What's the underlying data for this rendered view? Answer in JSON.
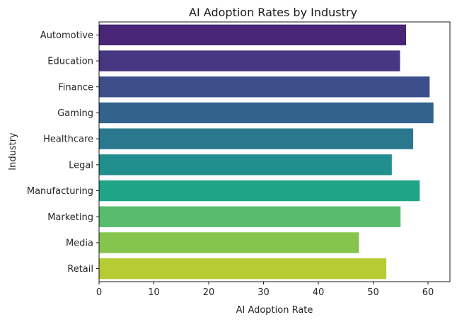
{
  "chart_data": {
    "type": "bar",
    "orientation": "horizontal",
    "title": "AI Adoption Rates by Industry",
    "xlabel": "AI Adoption Rate",
    "ylabel": "Industry",
    "categories": [
      "Automotive",
      "Education",
      "Finance",
      "Gaming",
      "Healthcare",
      "Legal",
      "Manufacturing",
      "Marketing",
      "Media",
      "Retail"
    ],
    "values": [
      56.0,
      54.9,
      60.3,
      61.0,
      57.3,
      53.4,
      58.5,
      55.0,
      47.4,
      52.4
    ],
    "colors": [
      "#482576",
      "#453781",
      "#3c4f8a",
      "#33638d",
      "#2a788e",
      "#218f8d",
      "#20a486",
      "#58bb6d",
      "#85c54e",
      "#b5cc35"
    ],
    "xlim": [
      0,
      64
    ],
    "xticks": [
      0,
      10,
      20,
      30,
      40,
      50,
      60
    ],
    "grid": false,
    "legend": "none"
  }
}
